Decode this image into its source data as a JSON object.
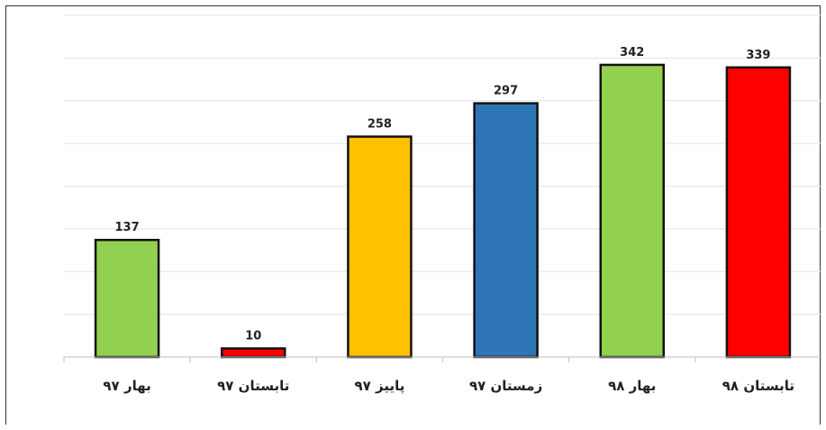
{
  "chart_data": {
    "type": "bar",
    "categories": [
      "بهار ۹۷",
      "تابستان ۹۷",
      "پاییز ۹۷",
      "زمستان ۹۷",
      "بهار ۹۸",
      "تابستان ۹۸"
    ],
    "values": [
      137,
      10,
      258,
      297,
      342,
      339
    ],
    "colors": [
      "#92d050",
      "#ff0000",
      "#ffc000",
      "#2e75b6",
      "#92d050",
      "#ff0000"
    ],
    "ylim": [
      0,
      400
    ],
    "grid": true,
    "legend": "none"
  }
}
